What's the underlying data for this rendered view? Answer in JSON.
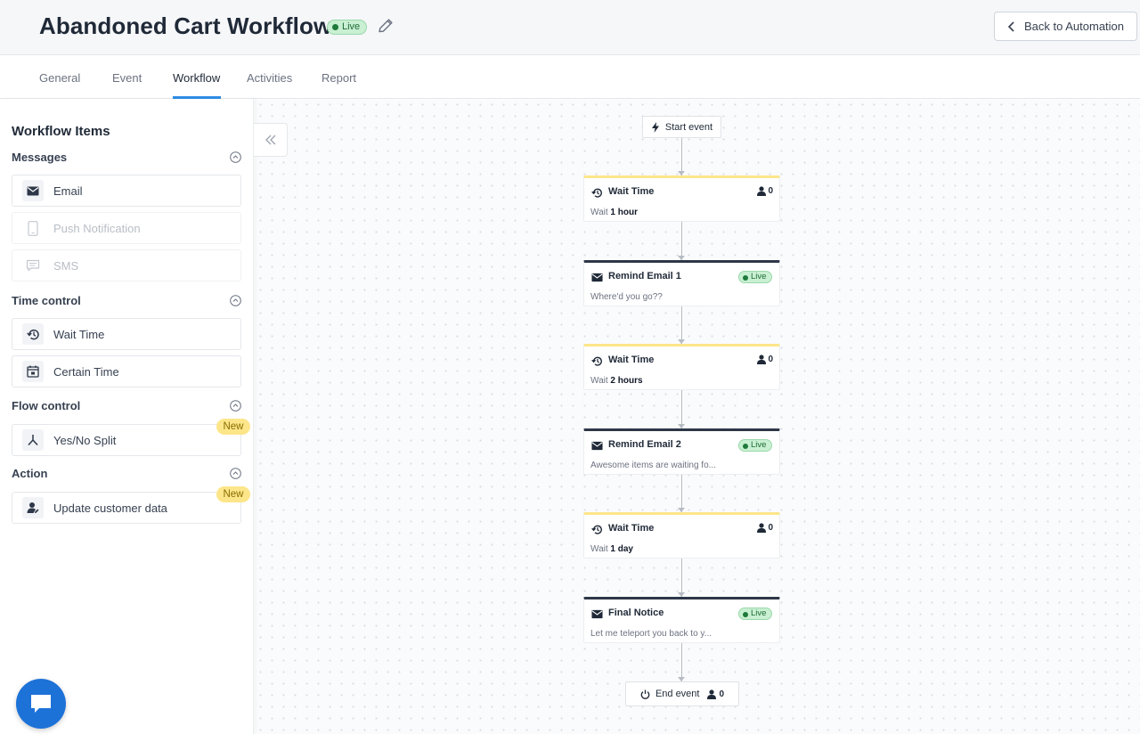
{
  "header": {
    "title": "Abandoned Cart Workflow",
    "status_badge": "Live",
    "back_button_label": "Back to Automation",
    "edit_icon": "pencil-icon"
  },
  "tabs": [
    {
      "label": "General",
      "active": false
    },
    {
      "label": "Event",
      "active": false
    },
    {
      "label": "Workflow",
      "active": true
    },
    {
      "label": "Activities",
      "active": false
    },
    {
      "label": "Report",
      "active": false
    }
  ],
  "sidebar": {
    "title": "Workflow Items",
    "sections": [
      {
        "label": "Messages",
        "items": [
          {
            "label": "Email",
            "icon": "envelope-icon",
            "disabled": false
          },
          {
            "label": "Push Notification",
            "icon": "mobile-icon",
            "disabled": true
          },
          {
            "label": "SMS",
            "icon": "chat-icon",
            "disabled": true
          }
        ]
      },
      {
        "label": "Time control",
        "items": [
          {
            "label": "Wait Time",
            "icon": "history-icon",
            "disabled": false
          },
          {
            "label": "Certain Time",
            "icon": "calendar-icon",
            "disabled": false
          }
        ]
      },
      {
        "label": "Flow control",
        "items": [
          {
            "label": "Yes/No Split",
            "icon": "split-icon",
            "disabled": false,
            "badge": "New"
          }
        ]
      },
      {
        "label": "Action",
        "items": [
          {
            "label": "Update customer data",
            "icon": "user-edit-icon",
            "disabled": false,
            "badge": "New"
          }
        ]
      }
    ]
  },
  "workflow": {
    "start": {
      "label": "Start event",
      "icon": "lightning-icon"
    },
    "nodes": [
      {
        "type": "wait",
        "title": "Wait Time",
        "sub_prefix": "Wait",
        "sub_value": "1 hour",
        "count": "0"
      },
      {
        "type": "message",
        "title": "Remind Email 1",
        "subtitle": "Where'd you go??",
        "status": "Live"
      },
      {
        "type": "wait",
        "title": "Wait Time",
        "sub_prefix": "Wait",
        "sub_value": "2 hours",
        "count": "0"
      },
      {
        "type": "message",
        "title": "Remind Email 2",
        "subtitle": "Awesome items are waiting fo...",
        "status": "Live"
      },
      {
        "type": "wait",
        "title": "Wait Time",
        "sub_prefix": "Wait",
        "sub_value": "1 day",
        "count": "0"
      },
      {
        "type": "message",
        "title": "Final Notice",
        "subtitle": "Let me teleport you back to y...",
        "status": "Live"
      }
    ],
    "end": {
      "label": "End event",
      "count": "0",
      "icon": "power-icon"
    }
  },
  "colors": {
    "accent": "#2f8de4",
    "live_bg": "#c9f0d3",
    "new_badge_bg": "#fde68a",
    "wait_top_border": "#fde68a",
    "message_top_border": "#2d3748",
    "chat_button": "#1d72d8"
  }
}
